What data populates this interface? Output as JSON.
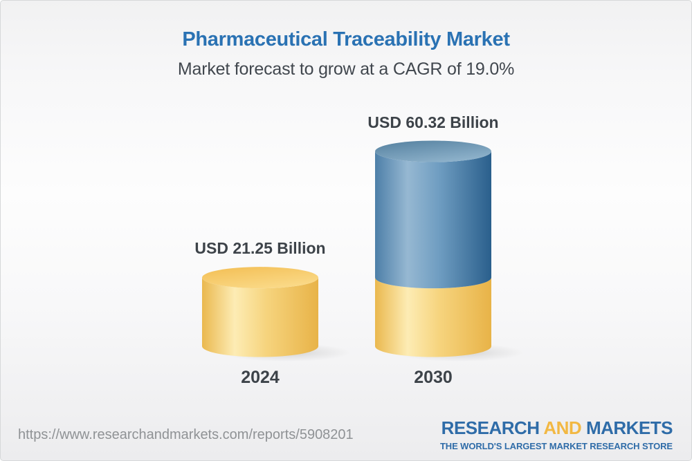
{
  "header": {
    "title": "Pharmaceutical Traceability Market",
    "subtitle": "Market forecast to grow at a CAGR of 19.0%"
  },
  "chart_data": {
    "type": "bar",
    "subtype": "3d-cylinder-stacked",
    "title": "Pharmaceutical Traceability Market",
    "subtitle": "Market forecast to grow at a CAGR of 19.0%",
    "unit": "USD Billion",
    "cagr_percent": 19.0,
    "categories": [
      "2024",
      "2030"
    ],
    "values": [
      21.25,
      60.32
    ],
    "value_labels": [
      "USD 21.25 Billion",
      "USD 60.32 Billion"
    ],
    "ylim": [
      0,
      60.32
    ],
    "grid": "off",
    "legend": "none",
    "colors": {
      "base_segment_gold": "#f0c25f",
      "growth_segment_blue": "#4c7ea6",
      "label_text": "#3d4349",
      "title_blue": "#2a72b3"
    }
  },
  "footer": {
    "url": "https://www.researchandmarkets.com/reports/5908201",
    "logo": {
      "word1": "RESEARCH",
      "word2": "AND",
      "word3": "MARKETS",
      "tagline": "THE WORLD'S LARGEST MARKET RESEARCH STORE",
      "brand_blue": "#2f6ca8",
      "brand_gold": "#f2b843"
    }
  }
}
